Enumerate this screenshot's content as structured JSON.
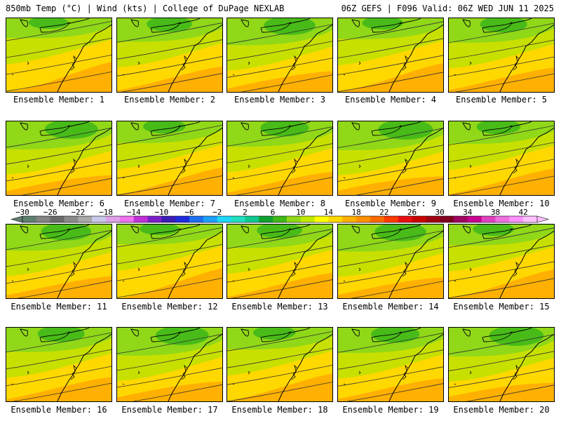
{
  "header": {
    "left": "850mb Temp (°C) | Wind (kts) | College of DuPage NEXLAB",
    "right": "06Z GEFS | F096 Valid: 06Z WED JUN 11 2025"
  },
  "members": [
    "Ensemble Member: 1",
    "Ensemble Member: 2",
    "Ensemble Member: 3",
    "Ensemble Member: 4",
    "Ensemble Member: 5",
    "Ensemble Member: 6",
    "Ensemble Member: 7",
    "Ensemble Member: 8",
    "Ensemble Member: 9",
    "Ensemble Member: 10",
    "Ensemble Member: 11",
    "Ensemble Member: 12",
    "Ensemble Member: 13",
    "Ensemble Member: 14",
    "Ensemble Member: 15",
    "Ensemble Member: 16",
    "Ensemble Member: 17",
    "Ensemble Member: 18",
    "Ensemble Member: 19",
    "Ensemble Member: 20"
  ],
  "colorbar": {
    "labels": [
      "−30",
      "−26",
      "−22",
      "−18",
      "−14",
      "−10",
      "−6",
      "−2",
      "2",
      "6",
      "10",
      "14",
      "18",
      "22",
      "26",
      "30",
      "34",
      "38",
      "42"
    ],
    "colors": [
      "#5f7f70",
      "#838383",
      "#6a6a6a",
      "#8a8a8a",
      "#a9a9a9",
      "#c8c8e8",
      "#e0a0e8",
      "#f070f0",
      "#c030d8",
      "#7a1ec8",
      "#3b1eb4",
      "#1e2cdc",
      "#1e6ef0",
      "#1ea0ff",
      "#1ed8f8",
      "#20e0c0",
      "#10c890",
      "#10a030",
      "#40b818",
      "#90d818",
      "#c0e800",
      "#ffff00",
      "#ffd800",
      "#ffb000",
      "#ff9000",
      "#ff6a00",
      "#ff3a00",
      "#e81010",
      "#c80000",
      "#a00010",
      "#800020",
      "#a00060",
      "#c80090",
      "#e040c0",
      "#f070e0",
      "#ff90ff",
      "#ffc0ff"
    ]
  },
  "colors": {
    "warm": "#ffb000",
    "mid": "#ffd800",
    "cool": "#c8e000",
    "cold": "#90d818",
    "coldest": "#40b818"
  }
}
